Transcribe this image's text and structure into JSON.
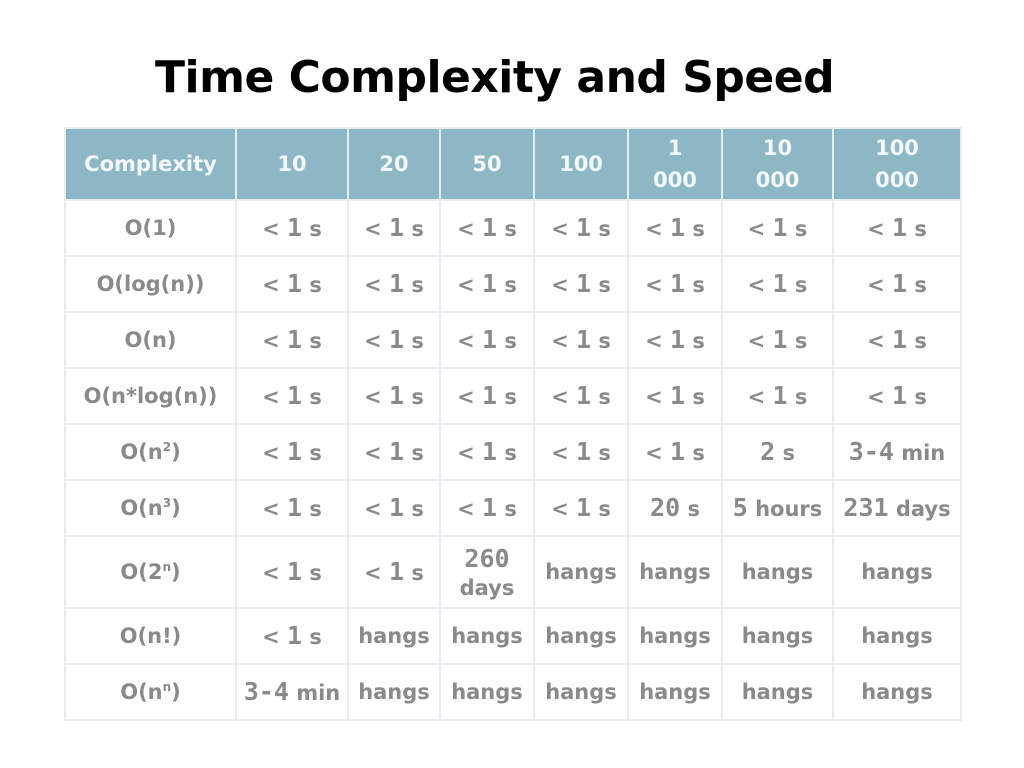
{
  "title": "Time Complexity and Speed",
  "header": {
    "label": "Complexity",
    "sizes": [
      "10",
      "20",
      "50",
      "100",
      "1 000",
      "10 000",
      "100 000"
    ]
  },
  "rows": [
    {
      "label": "O(1)",
      "cells": [
        "< 1 s",
        "< 1 s",
        "< 1 s",
        "< 1 s",
        "< 1 s",
        "< 1 s",
        "< 1 s"
      ]
    },
    {
      "label": "O(log(n))",
      "cells": [
        "< 1 s",
        "< 1 s",
        "< 1 s",
        "< 1 s",
        "< 1 s",
        "< 1 s",
        "< 1 s"
      ]
    },
    {
      "label": "O(n)",
      "cells": [
        "< 1 s",
        "< 1 s",
        "< 1 s",
        "< 1 s",
        "< 1 s",
        "< 1 s",
        "< 1 s"
      ]
    },
    {
      "label": "O(n*log(n))",
      "cells": [
        "< 1 s",
        "< 1 s",
        "< 1 s",
        "< 1 s",
        "< 1 s",
        "< 1 s",
        "< 1 s"
      ]
    },
    {
      "label": "O(n",
      "sup": "2",
      "label_end": ")",
      "cells": [
        "< 1 s",
        "< 1 s",
        "< 1 s",
        "< 1 s",
        "< 1 s",
        "2 s",
        "3-4 min"
      ]
    },
    {
      "label": "O(n",
      "sup": "3",
      "label_end": ")",
      "cells": [
        "< 1 s",
        "< 1 s",
        "< 1 s",
        "< 1 s",
        "20 s",
        "5 hours",
        "231 days"
      ]
    },
    {
      "label": "O(2",
      "sup": "n",
      "label_end": ")",
      "tall": true,
      "cells": [
        "< 1 s",
        "< 1 s",
        "260 days",
        "hangs",
        "hangs",
        "hangs",
        "hangs"
      ]
    },
    {
      "label": "O(n!)",
      "cells": [
        "< 1 s",
        "hangs",
        "hangs",
        "hangs",
        "hangs",
        "hangs",
        "hangs"
      ]
    },
    {
      "label": "O(n",
      "sup": "n",
      "label_end": ")",
      "cells": [
        "3-4 min",
        "hangs",
        "hangs",
        "hangs",
        "hangs",
        "hangs",
        "hangs"
      ]
    }
  ],
  "colors": {
    "header_bg": "#8db7c5",
    "header_text": "#f2f7f9",
    "cell_text": "#8a8a8a",
    "grid": "#e4eef2"
  }
}
